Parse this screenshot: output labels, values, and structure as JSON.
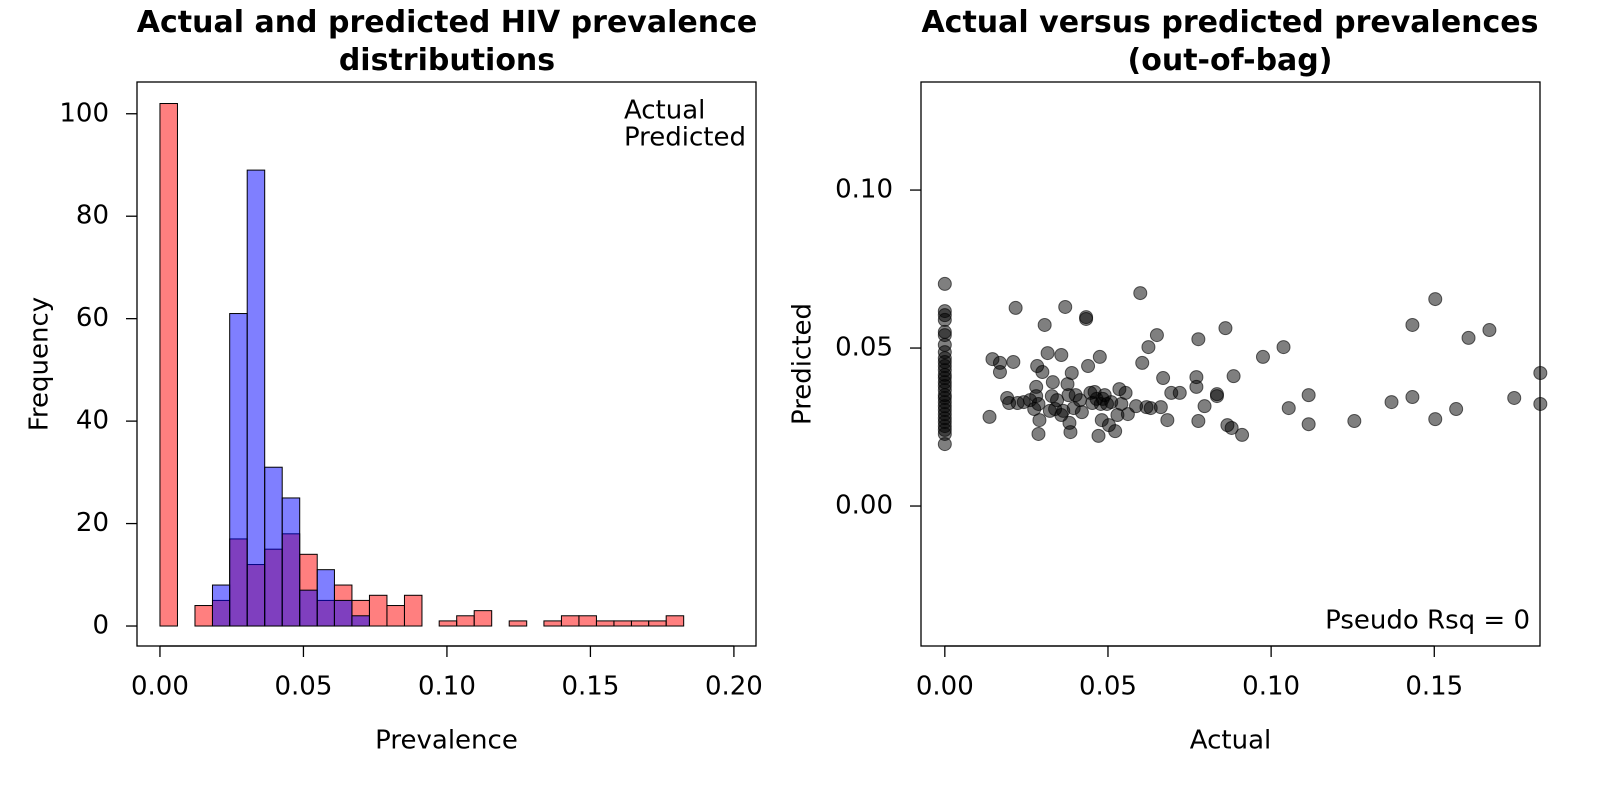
{
  "chart_data": [
    {
      "type": "histogram",
      "title": "Actual and predicted HIV prevalence distributions",
      "xlabel": "Prevalence",
      "ylabel": "Frequency",
      "bins": [
        0,
        0.0061,
        0.0122,
        0.0183,
        0.0243,
        0.0304,
        0.0365,
        0.0426,
        0.0487,
        0.0548,
        0.0608,
        0.0669,
        0.073,
        0.0791,
        0.0852,
        0.0913,
        0.0973,
        0.1034,
        0.1095,
        0.1156,
        0.1217,
        0.1278,
        0.1338,
        0.1399,
        0.146,
        0.1521,
        0.1582,
        0.1643,
        0.1703,
        0.1764,
        0.1825
      ],
      "series": [
        {
          "name": "Actual",
          "color": "#ff0000",
          "values": [
            102,
            0,
            4,
            5,
            17,
            12,
            15,
            18,
            14,
            5,
            8,
            5,
            6,
            4,
            6,
            0,
            1,
            2,
            3,
            0,
            1,
            0,
            1,
            2,
            2,
            1,
            1,
            1,
            1,
            2
          ]
        },
        {
          "name": "Predicted",
          "color": "#0000ff",
          "values": [
            0,
            0,
            0,
            8,
            61,
            89,
            31,
            25,
            7,
            11,
            5,
            2,
            0,
            0,
            0,
            0,
            0,
            0,
            0,
            0,
            0,
            0,
            0,
            0,
            0,
            0,
            0,
            0,
            0,
            0
          ]
        }
      ],
      "opacity": 0.5,
      "legend": "top-right",
      "xlim": [
        -0.008,
        0.2077
      ],
      "ylim": [
        -3.9,
        106.2
      ],
      "xticks": [
        {
          "value": 0,
          "label": "0.00"
        },
        {
          "value": 0.05,
          "label": "0.05"
        },
        {
          "value": 0.1,
          "label": "0.10"
        },
        {
          "value": 0.15,
          "label": "0.15"
        },
        {
          "value": 0.2,
          "label": "0.20"
        }
      ],
      "yticks": [
        0,
        20,
        40,
        60,
        80,
        100
      ]
    },
    {
      "type": "scatter",
      "title": "Actual versus predicted prevalences (out-of-bag)",
      "xlabel": "Actual",
      "ylabel": "Predicted",
      "annotation": "Pseudo Rsq = 0",
      "color": "#000000",
      "opacity": 0.5,
      "x": [
        0,
        0,
        0,
        0,
        0,
        0,
        0,
        0,
        0,
        0,
        0,
        0,
        0,
        0,
        0,
        0,
        0,
        0,
        0,
        0,
        0,
        0,
        0,
        0,
        0,
        0,
        0,
        0,
        0,
        0.0137,
        0.0146,
        0.0169,
        0.0169,
        0.0191,
        0.0197,
        0.0217,
        0.021,
        0.0223,
        0.0242,
        0.0261,
        0.0274,
        0.028,
        0.028,
        0.0283,
        0.0287,
        0.029,
        0.0287,
        0.0299,
        0.0306,
        0.0315,
        0.0322,
        0.0328,
        0.0331,
        0.0338,
        0.0344,
        0.0357,
        0.0357,
        0.0363,
        0.0369,
        0.0376,
        0.0379,
        0.0382,
        0.0385,
        0.0389,
        0.0395,
        0.0401,
        0.0414,
        0.042,
        0.0433,
        0.0433,
        0.0439,
        0.0446,
        0.0452,
        0.0459,
        0.0465,
        0.0471,
        0.0475,
        0.0478,
        0.0481,
        0.0484,
        0.049,
        0.0497,
        0.0503,
        0.051,
        0.0522,
        0.0529,
        0.0535,
        0.0541,
        0.0554,
        0.0561,
        0.0586,
        0.0599,
        0.0605,
        0.0618,
        0.0624,
        0.0631,
        0.065,
        0.0662,
        0.0669,
        0.0682,
        0.0694,
        0.072,
        0.0777,
        0.0771,
        0.0771,
        0.0777,
        0.0796,
        0.0834,
        0.0834,
        0.086,
        0.0866,
        0.0879,
        0.0885,
        0.0911,
        0.0975,
        0.1038,
        0.1054,
        0.1115,
        0.1115,
        0.1255,
        0.1369,
        0.1433,
        0.1433,
        0.1503,
        0.1503,
        0.1567,
        0.1605,
        0.1669,
        0.1745,
        0.1825,
        0.1825
      ],
      "values": [
        0.0703,
        0.0617,
        0.0604,
        0.0589,
        0.0551,
        0.0541,
        0.051,
        0.0487,
        0.0468,
        0.0456,
        0.0443,
        0.043,
        0.0415,
        0.0405,
        0.0392,
        0.038,
        0.0367,
        0.0351,
        0.0342,
        0.0329,
        0.0316,
        0.0304,
        0.0291,
        0.0278,
        0.0266,
        0.0253,
        0.0241,
        0.0228,
        0.0196,
        0.0282,
        0.0465,
        0.0453,
        0.0424,
        0.0342,
        0.0326,
        0.0627,
        0.0456,
        0.0326,
        0.0329,
        0.0335,
        0.0307,
        0.0377,
        0.0348,
        0.0443,
        0.0323,
        0.0272,
        0.0228,
        0.0424,
        0.0573,
        0.0484,
        0.0301,
        0.0348,
        0.0392,
        0.0307,
        0.0335,
        0.0478,
        0.0288,
        0.0301,
        0.063,
        0.0386,
        0.0351,
        0.0263,
        0.0234,
        0.0421,
        0.031,
        0.0351,
        0.0335,
        0.0297,
        0.0598,
        0.0592,
        0.0443,
        0.0358,
        0.0326,
        0.0361,
        0.0339,
        0.0222,
        0.0472,
        0.0323,
        0.0272,
        0.0339,
        0.0351,
        0.0323,
        0.0256,
        0.0329,
        0.0237,
        0.0288,
        0.037,
        0.0323,
        0.0358,
        0.0291,
        0.0316,
        0.0674,
        0.0453,
        0.0313,
        0.0503,
        0.031,
        0.0541,
        0.0313,
        0.0405,
        0.0272,
        0.0358,
        0.0358,
        0.0528,
        0.0377,
        0.0408,
        0.0269,
        0.0316,
        0.0354,
        0.0348,
        0.0563,
        0.0256,
        0.0247,
        0.0411,
        0.0225,
        0.0472,
        0.0503,
        0.031,
        0.0259,
        0.0351,
        0.0269,
        0.0329,
        0.0573,
        0.0345,
        0.0655,
        0.0275,
        0.0307,
        0.0532,
        0.0557,
        0.0342,
        0.0421,
        0.0323
      ],
      "xlim": [
        -0.0073,
        0.1824
      ],
      "ylim": [
        -0.0443,
        0.1342
      ],
      "xticks": [
        {
          "value": 0,
          "label": "0.00"
        },
        {
          "value": 0.05,
          "label": "0.05"
        },
        {
          "value": 0.1,
          "label": "0.10"
        },
        {
          "value": 0.15,
          "label": "0.15"
        }
      ],
      "yticks": [
        {
          "value": 0,
          "label": "0.00"
        },
        {
          "value": 0.05,
          "label": "0.05"
        },
        {
          "value": 0.1,
          "label": "0.10"
        }
      ]
    }
  ]
}
